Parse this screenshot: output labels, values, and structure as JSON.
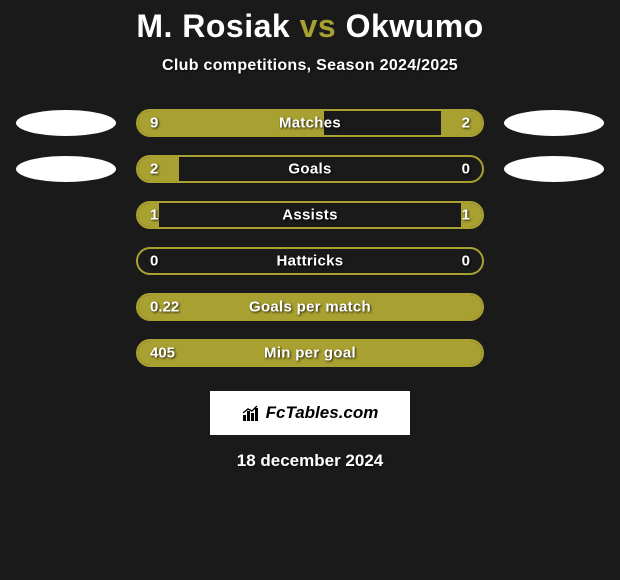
{
  "title": {
    "left": "M. Rosiak",
    "vs": "vs",
    "right": "Okwumo"
  },
  "subtitle": "Club competitions, Season 2024/2025",
  "colors": {
    "background": "#1a1a1a",
    "bar": "#a8a030",
    "text": "#ffffff",
    "logo": "#ffffff"
  },
  "bars": [
    {
      "label": "Matches",
      "left_val": "9",
      "right_val": "2",
      "left_pct": 54,
      "right_pct": 12,
      "show_logos": true
    },
    {
      "label": "Goals",
      "left_val": "2",
      "right_val": "0",
      "left_pct": 12,
      "right_pct": 0,
      "show_logos": true
    },
    {
      "label": "Assists",
      "left_val": "1",
      "right_val": "1",
      "left_pct": 6,
      "right_pct": 6,
      "show_logos": false
    },
    {
      "label": "Hattricks",
      "left_val": "0",
      "right_val": "0",
      "left_pct": 0,
      "right_pct": 0,
      "show_logos": false
    },
    {
      "label": "Goals per match",
      "left_val": "0.22",
      "right_val": "",
      "left_pct": 100,
      "right_pct": 0,
      "show_logos": false
    },
    {
      "label": "Min per goal",
      "left_val": "405",
      "right_val": "",
      "left_pct": 100,
      "right_pct": 0,
      "show_logos": false
    }
  ],
  "footer": {
    "brand": "FcTables.com",
    "date": "18 december 2024"
  }
}
